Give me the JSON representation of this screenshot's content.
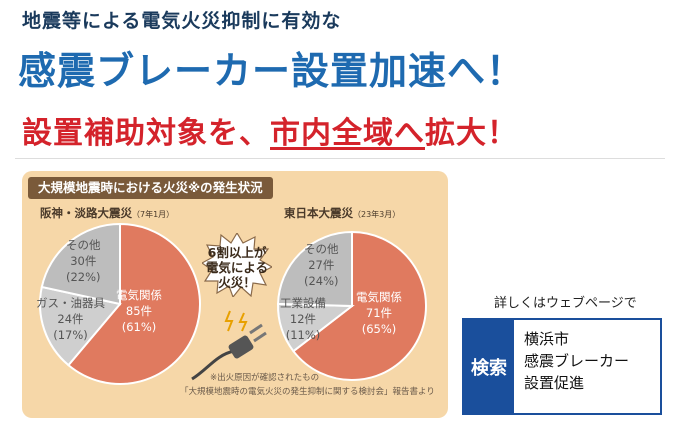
{
  "headline": {
    "line1": "地震等による電気火災抑制に有効な",
    "line2": "感震ブレーカー設置加速へ！",
    "line3_prefix": "設置補助対象を、",
    "line3_highlight": "市内全域へ",
    "line3_suffix": "拡大！"
  },
  "infographic": {
    "title": "大規模地震時における火災※の発生状況",
    "callout": "6割以上が\n電気による\n火災！",
    "footnote1": "※出火原因が確認されたもの",
    "footnote2": "「大規模地震時の電気火災の発生抑制に関する検討会」報告書より"
  },
  "chart_data": [
    {
      "type": "pie",
      "title": "阪神・淡路大震災",
      "subtitle": "（7年1月）",
      "slices": [
        {
          "label": "電気関係",
          "count_text": "85件",
          "pct_text": "(61%)",
          "value": 85,
          "color": "#e07a5f"
        },
        {
          "label": "ガス・油器具",
          "count_text": "24件",
          "pct_text": "(17%)",
          "value": 24,
          "color": "#cfcfcf"
        },
        {
          "label": "その他",
          "count_text": "30件",
          "pct_text": "(22%)",
          "value": 30,
          "color": "#bdbdbd"
        }
      ]
    },
    {
      "type": "pie",
      "title": "東日本大震災",
      "subtitle": "（23年3月）",
      "slices": [
        {
          "label": "電気関係",
          "count_text": "71件",
          "pct_text": "(65%)",
          "value": 71,
          "color": "#e07a5f"
        },
        {
          "label": "工業設備",
          "count_text": "12件",
          "pct_text": "(11%)",
          "value": 12,
          "color": "#cfcfcf"
        },
        {
          "label": "その他",
          "count_text": "27件",
          "pct_text": "(24%)",
          "value": 27,
          "color": "#bdbdbd"
        }
      ]
    }
  ],
  "search": {
    "note": "詳しくはウェブページで",
    "button": "検索",
    "term": "横浜市\n感震ブレーカー\n設置促進"
  }
}
